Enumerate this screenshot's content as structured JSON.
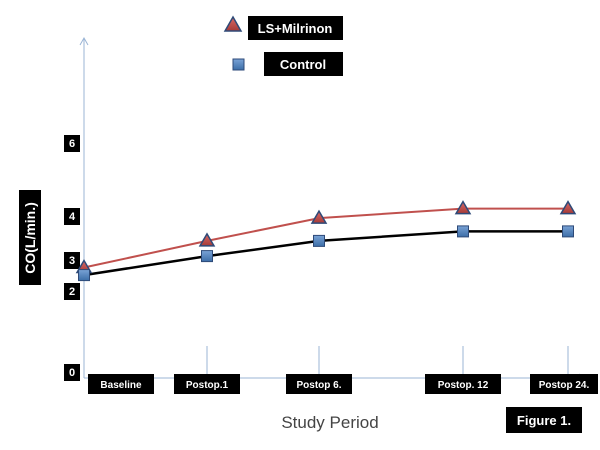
{
  "chart_data": {
    "type": "line",
    "categories": [
      "Baseline",
      "Postop.1",
      "Postop 6.",
      "Postop. 12",
      "Postop 24."
    ],
    "series": [
      {
        "name": "LS+Milrinon",
        "values": [
          2.75,
          3.45,
          4.05,
          4.3,
          4.3
        ],
        "color": "#c0504d",
        "line_color": "#c0504d",
        "marker": "triangle"
      },
      {
        "name": "Control",
        "values": [
          2.55,
          3.05,
          3.45,
          3.7,
          3.7
        ],
        "color": "#4f81bd",
        "line_color": "#000000",
        "marker": "square"
      }
    ],
    "ylabel": "CO(L/min.)",
    "xlabel": "Study Period",
    "y_ticks": [
      "0",
      "2",
      "3",
      "4",
      "6"
    ],
    "ylim": [
      0,
      9.2
    ],
    "grid": false,
    "legend_position": "top"
  },
  "figure_label": "Figure 1."
}
